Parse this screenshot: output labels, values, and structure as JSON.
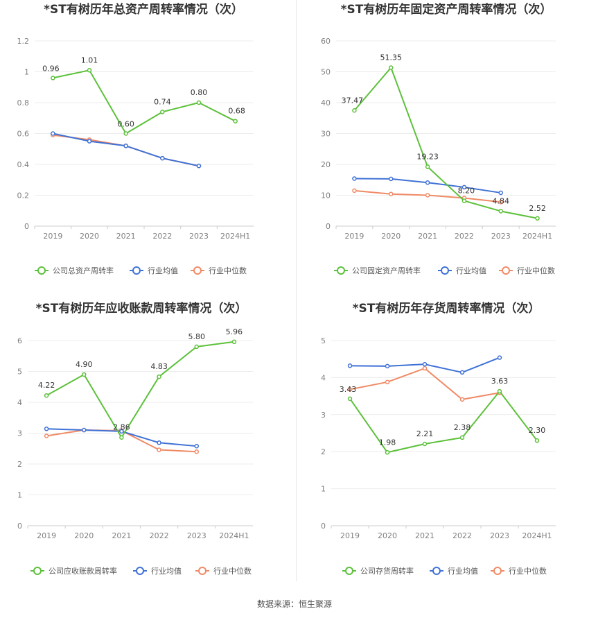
{
  "footer": {
    "source": "数据来源：恒生聚源"
  },
  "colors": {
    "company": "#5cc13a",
    "industry_avg": "#3f72d6",
    "industry_median": "#f08a65"
  },
  "chart_data": [
    {
      "type": "line",
      "title": "*ST有树历年总资产周转率情况（次）",
      "categories": [
        "2019",
        "2020",
        "2021",
        "2022",
        "2023",
        "2024H1"
      ],
      "ylim": [
        0,
        1.2
      ],
      "yticks": [
        "0",
        "0.2",
        "0.4",
        "0.6",
        "0.8",
        "1",
        "1.2"
      ],
      "legend": "bottom",
      "series": [
        {
          "name": "公司总资产周转率",
          "values": [
            0.96,
            1.01,
            0.6,
            0.74,
            0.8,
            0.68
          ],
          "labels": [
            "0.96",
            "1.01",
            "0.60",
            "0.74",
            "0.80",
            "0.68"
          ]
        },
        {
          "name": "行业均值",
          "values": [
            0.6,
            0.55,
            0.52,
            0.44,
            0.39,
            null
          ]
        },
        {
          "name": "行业中位数",
          "values": [
            0.59,
            0.56,
            0.52,
            0.44,
            0.39,
            null
          ]
        }
      ]
    },
    {
      "type": "line",
      "title": "*ST有树历年固定资产周转率情况（次）",
      "categories": [
        "2019",
        "2020",
        "2021",
        "2022",
        "2023",
        "2024H1"
      ],
      "ylim": [
        0,
        60
      ],
      "yticks": [
        "0",
        "10",
        "20",
        "30",
        "40",
        "50",
        "60"
      ],
      "legend": "bottom",
      "series": [
        {
          "name": "公司固定资产周转率",
          "values": [
            37.47,
            51.35,
            19.23,
            8.2,
            4.84,
            2.52
          ],
          "labels": [
            "37.47",
            "51.35",
            "19.23",
            "8.20",
            "4.84",
            "2.52"
          ]
        },
        {
          "name": "行业均值",
          "values": [
            15.4,
            15.3,
            14.1,
            12.6,
            10.8,
            null
          ]
        },
        {
          "name": "行业中位数",
          "values": [
            11.5,
            10.4,
            10.0,
            9.1,
            7.8,
            null
          ]
        }
      ]
    },
    {
      "type": "line",
      "title": "*ST有树历年应收账款周转率情况（次）",
      "categories": [
        "2019",
        "2020",
        "2021",
        "2022",
        "2023",
        "2024H1"
      ],
      "ylim": [
        0,
        6
      ],
      "yticks": [
        "0",
        "1",
        "2",
        "3",
        "4",
        "5",
        "6"
      ],
      "legend": "bottom",
      "series": [
        {
          "name": "公司应收账款周转率",
          "values": [
            4.22,
            4.9,
            2.86,
            4.83,
            5.8,
            5.96
          ],
          "labels": [
            "4.22",
            "4.90",
            "2.86",
            "4.83",
            "5.80",
            "5.96"
          ]
        },
        {
          "name": "行业均值",
          "values": [
            3.14,
            3.1,
            3.06,
            2.69,
            2.58,
            null
          ]
        },
        {
          "name": "行业中位数",
          "values": [
            2.91,
            3.1,
            3.08,
            2.46,
            2.4,
            null
          ]
        }
      ]
    },
    {
      "type": "line",
      "title": "*ST有树历年存货周转率情况（次）",
      "categories": [
        "2019",
        "2020",
        "2021",
        "2022",
        "2023",
        "2024H1"
      ],
      "ylim": [
        0,
        5
      ],
      "yticks": [
        "0",
        "1",
        "2",
        "3",
        "4",
        "5"
      ],
      "legend": "bottom",
      "series": [
        {
          "name": "公司存货周转率",
          "values": [
            3.43,
            1.98,
            2.21,
            2.38,
            3.63,
            2.3
          ],
          "labels": [
            "3.43",
            "1.98",
            "2.21",
            "2.38",
            "3.63",
            "2.30"
          ]
        },
        {
          "name": "行业均值",
          "values": [
            4.32,
            4.31,
            4.36,
            4.14,
            4.54,
            null
          ]
        },
        {
          "name": "行业中位数",
          "values": [
            3.68,
            3.88,
            4.25,
            3.41,
            3.59,
            null
          ]
        }
      ]
    }
  ]
}
